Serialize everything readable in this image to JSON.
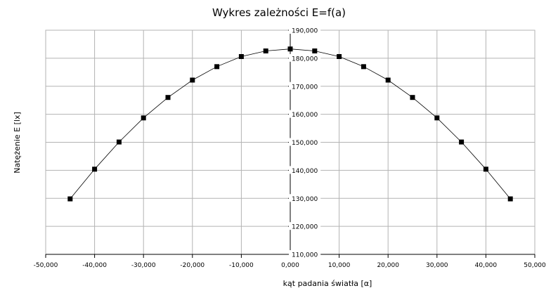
{
  "chart_data": {
    "type": "scatter",
    "title": "Wykres zależności E=f(a)",
    "xlabel": "kąt padania światła [α]",
    "ylabel": "Natężenie E [lx]",
    "xlim": [
      -50000,
      50000
    ],
    "ylim": [
      110000,
      190000
    ],
    "xticks": [
      -50000,
      -40000,
      -30000,
      -20000,
      -10000,
      0,
      10000,
      20000,
      30000,
      40000,
      50000
    ],
    "yticks": [
      110000,
      120000,
      130000,
      140000,
      150000,
      160000,
      170000,
      180000,
      190000
    ],
    "xtick_labels": [
      "-50,000",
      "-40,000",
      "-30,000",
      "-20,000",
      "-10,000",
      "0,000",
      "10,000",
      "20,000",
      "30,000",
      "40,000",
      "50,000"
    ],
    "ytick_labels": [
      "110,000",
      "120,000",
      "130,000",
      "140,000",
      "150,000",
      "160,000",
      "170,000",
      "180,000",
      "190,000"
    ],
    "grid": true,
    "legend": "none",
    "marker": "square",
    "line_color": "#000000",
    "marker_color": "#000000",
    "grid_color": "#b3b3b3",
    "series": [
      {
        "x": [
          -45000,
          -40000,
          -35000,
          -30000,
          -25000,
          -20000,
          -15000,
          -10000,
          -5000,
          0,
          5000,
          10000,
          15000,
          20000,
          25000,
          30000,
          35000,
          40000,
          45000
        ],
        "y": [
          129800,
          140400,
          150100,
          158700,
          166000,
          172200,
          177000,
          180600,
          182600,
          183300,
          182600,
          180600,
          177000,
          172200,
          166000,
          158700,
          150100,
          140400,
          129800
        ]
      }
    ]
  }
}
